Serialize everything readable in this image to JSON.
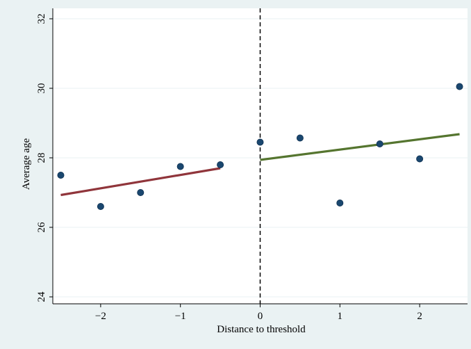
{
  "chart_data": {
    "type": "scatter",
    "title": "",
    "xlabel": "Distance to threshold",
    "ylabel": "Average age",
    "xlim": [
      -2.6,
      2.6
    ],
    "ylim": [
      23.8,
      32.3
    ],
    "x_ticks": [
      -2,
      -1,
      0,
      1,
      2
    ],
    "x_tick_labels": [
      "−2",
      "−1",
      "0",
      "1",
      "2"
    ],
    "y_ticks": [
      24,
      26,
      28,
      30,
      32
    ],
    "y_tick_labels": [
      "24",
      "26",
      "28",
      "30",
      "32"
    ],
    "grid": "horizontal",
    "legend": "none",
    "threshold": {
      "x": 0,
      "style": "dashed",
      "color": "#000000"
    },
    "points": {
      "color": "#1a476f",
      "x": [
        -2.5,
        -2,
        -1.5,
        -1,
        -0.5,
        0,
        0.5,
        1,
        1.5,
        2,
        2.5
      ],
      "y": [
        27.5,
        26.6,
        27.0,
        27.75,
        27.8,
        28.45,
        28.57,
        26.7,
        28.4,
        27.97,
        30.05
      ]
    },
    "fit_lines": [
      {
        "x": [
          -2.5,
          -0.5
        ],
        "y": [
          26.93,
          27.7
        ],
        "color": "#90353b"
      },
      {
        "x": [
          0,
          2.5
        ],
        "y": [
          27.94,
          28.68
        ],
        "color": "#55752f"
      }
    ]
  },
  "colors": {
    "page_background": "#eaf2f3",
    "plot_background": "#ffffff",
    "gridline": "#eaf2f3"
  }
}
